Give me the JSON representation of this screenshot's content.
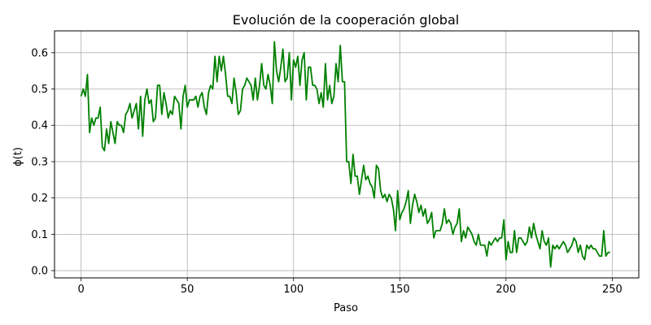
{
  "chart_data": {
    "type": "line",
    "title": "Evolución de la cooperación global",
    "xlabel": "Paso",
    "ylabel": "ϕ(t)",
    "xlim": [
      -12.5,
      262.5
    ],
    "ylim": [
      -0.02,
      0.66
    ],
    "x_ticks": [
      0,
      50,
      100,
      150,
      200,
      250
    ],
    "x_tick_labels": [
      "0",
      "50",
      "100",
      "150",
      "200",
      "250"
    ],
    "y_ticks": [
      0.0,
      0.1,
      0.2,
      0.3,
      0.4,
      0.5,
      0.6
    ],
    "y_tick_labels": [
      "0.0",
      "0.1",
      "0.2",
      "0.3",
      "0.4",
      "0.5",
      "0.6"
    ],
    "grid": true,
    "series": [
      {
        "color": "#008000",
        "x_start": 0,
        "x_step": 1,
        "values": [
          0.48,
          0.5,
          0.48,
          0.54,
          0.38,
          0.42,
          0.4,
          0.42,
          0.42,
          0.45,
          0.34,
          0.33,
          0.39,
          0.35,
          0.41,
          0.38,
          0.35,
          0.41,
          0.4,
          0.4,
          0.38,
          0.43,
          0.44,
          0.46,
          0.42,
          0.44,
          0.46,
          0.39,
          0.48,
          0.37,
          0.47,
          0.5,
          0.46,
          0.47,
          0.41,
          0.42,
          0.51,
          0.51,
          0.43,
          0.49,
          0.46,
          0.42,
          0.44,
          0.43,
          0.48,
          0.47,
          0.46,
          0.39,
          0.48,
          0.51,
          0.45,
          0.47,
          0.47,
          0.47,
          0.48,
          0.45,
          0.48,
          0.49,
          0.45,
          0.43,
          0.49,
          0.51,
          0.5,
          0.59,
          0.52,
          0.59,
          0.55,
          0.59,
          0.54,
          0.48,
          0.48,
          0.46,
          0.53,
          0.49,
          0.43,
          0.44,
          0.5,
          0.51,
          0.53,
          0.52,
          0.51,
          0.47,
          0.53,
          0.47,
          0.51,
          0.57,
          0.51,
          0.5,
          0.54,
          0.51,
          0.46,
          0.63,
          0.55,
          0.52,
          0.56,
          0.61,
          0.52,
          0.53,
          0.6,
          0.47,
          0.58,
          0.56,
          0.59,
          0.51,
          0.58,
          0.6,
          0.47,
          0.56,
          0.56,
          0.51,
          0.51,
          0.5,
          0.46,
          0.49,
          0.45,
          0.57,
          0.47,
          0.51,
          0.46,
          0.48,
          0.57,
          0.52,
          0.62,
          0.52,
          0.52,
          0.3,
          0.3,
          0.24,
          0.32,
          0.26,
          0.26,
          0.21,
          0.25,
          0.29,
          0.25,
          0.26,
          0.24,
          0.23,
          0.2,
          0.29,
          0.28,
          0.22,
          0.2,
          0.21,
          0.19,
          0.21,
          0.2,
          0.17,
          0.11,
          0.22,
          0.14,
          0.16,
          0.17,
          0.19,
          0.22,
          0.13,
          0.18,
          0.21,
          0.19,
          0.16,
          0.18,
          0.15,
          0.17,
          0.13,
          0.14,
          0.16,
          0.09,
          0.11,
          0.11,
          0.11,
          0.13,
          0.17,
          0.13,
          0.14,
          0.13,
          0.1,
          0.12,
          0.13,
          0.17,
          0.08,
          0.11,
          0.09,
          0.12,
          0.11,
          0.1,
          0.08,
          0.07,
          0.1,
          0.07,
          0.07,
          0.07,
          0.04,
          0.08,
          0.07,
          0.08,
          0.09,
          0.08,
          0.09,
          0.09,
          0.14,
          0.03,
          0.08,
          0.05,
          0.05,
          0.11,
          0.05,
          0.09,
          0.09,
          0.08,
          0.07,
          0.08,
          0.12,
          0.09,
          0.13,
          0.1,
          0.08,
          0.06,
          0.11,
          0.08,
          0.07,
          0.09,
          0.01,
          0.07,
          0.06,
          0.07,
          0.06,
          0.07,
          0.08,
          0.07,
          0.05,
          0.06,
          0.07,
          0.09,
          0.08,
          0.05,
          0.07,
          0.04,
          0.03,
          0.07,
          0.06,
          0.07,
          0.06,
          0.06,
          0.05,
          0.04,
          0.04,
          0.11,
          0.04,
          0.05,
          0.05
        ]
      }
    ]
  }
}
